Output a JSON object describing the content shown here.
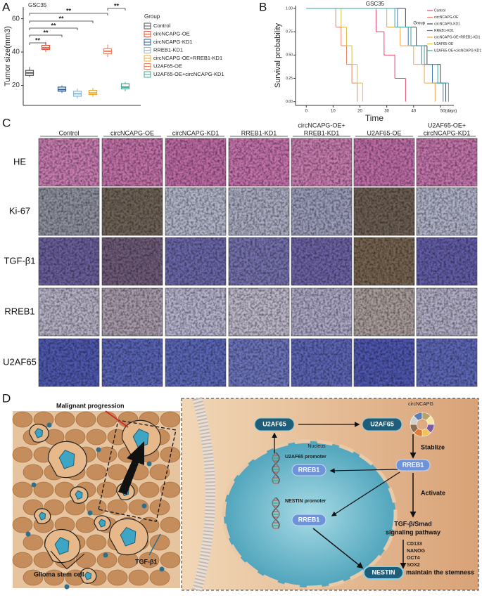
{
  "panel_a": {
    "label": "A",
    "chart": {
      "type": "box",
      "title": "GSC35",
      "y_label": "Tumor size(mm3)",
      "ylim": [
        8,
        67
      ],
      "yticks": [
        20,
        40,
        60
      ],
      "legend_title": "Group",
      "series": [
        {
          "name": "Control",
          "color": "#555555",
          "values": [
            25,
            26,
            27.5,
            29,
            31
          ]
        },
        {
          "name": "circNCAPG-OE",
          "color": "#e8553a",
          "values": [
            40,
            41.5,
            42.5,
            44,
            46
          ]
        },
        {
          "name": "circNCAPG-KD1",
          "color": "#2a5fa8",
          "values": [
            15.5,
            16.5,
            17.5,
            19,
            20
          ]
        },
        {
          "name": "RREB1-KD1",
          "color": "#7fb8e0",
          "values": [
            12,
            13.5,
            15,
            16.5,
            18
          ]
        },
        {
          "name": "circNCAPG-OE+RREB1-KD1",
          "color": "#f0a830",
          "values": [
            13,
            14.5,
            15.5,
            17,
            18.5
          ]
        },
        {
          "name": "U2AF65-OE",
          "color": "#f08060",
          "values": [
            37,
            39,
            40.5,
            42,
            44.5
          ]
        },
        {
          "name": "U2AF65-OE+circNCAPG-KD1",
          "color": "#40a890",
          "values": [
            16.5,
            18,
            19,
            21,
            22
          ]
        }
      ],
      "significance": [
        "**",
        "**",
        "**",
        "**",
        "**",
        "**"
      ]
    }
  },
  "panel_b": {
    "label": "B",
    "chart": {
      "type": "step",
      "title": "GSC35",
      "x_label": "Time",
      "y_label": "Survival probability",
      "xlim": [
        -4,
        55
      ],
      "xticks": [
        0,
        10,
        20,
        30,
        40,
        {
          "value": 50,
          "label": "50(days)"
        }
      ],
      "ylim": [
        -0.04,
        1.03
      ],
      "yticks": [
        {
          "value": 0,
          "label": "0.00"
        },
        0.25,
        {
          "value": 0.5,
          "label": "0.50"
        },
        0.75,
        {
          "value": 1,
          "label": "1.00"
        }
      ],
      "legend_title": "Group",
      "series": [
        {
          "name": "Control",
          "color": "#e8436f",
          "x": [
            0,
            26,
            29,
            33,
            37
          ],
          "values": [
            1,
            0.75,
            0.5,
            0.25,
            0
          ]
        },
        {
          "name": "circNCAPG-OE",
          "color": "#f07f6a",
          "x": [
            0,
            11,
            13,
            15,
            17,
            19
          ],
          "values": [
            1,
            0.8,
            0.6,
            0.4,
            0.2,
            0
          ]
        },
        {
          "name": "circNCAPG-KD1",
          "color": "#444444",
          "x": [
            0,
            37,
            41,
            45,
            50,
            52
          ],
          "values": [
            1,
            0.8,
            0.6,
            0.4,
            0.2,
            0
          ]
        },
        {
          "name": "RREB1-KD1",
          "color": "#3f7ac2",
          "x": [
            0,
            34,
            38,
            43,
            47,
            51
          ],
          "values": [
            1,
            0.8,
            0.6,
            0.4,
            0.2,
            0
          ]
        },
        {
          "name": "circNCAPG-OE+RREB1-KD1",
          "color": "#f2a540",
          "x": [
            0,
            30,
            35,
            40,
            44,
            48
          ],
          "values": [
            1,
            0.8,
            0.6,
            0.4,
            0.2,
            0
          ]
        },
        {
          "name": "U2AF65-OE",
          "color": "#d9c23b",
          "x": [
            0,
            13,
            15,
            17,
            19,
            21
          ],
          "values": [
            1,
            0.8,
            0.6,
            0.4,
            0.2,
            0
          ]
        },
        {
          "name": "U2AF65-OE+circNCAPG-KD1",
          "color": "#3aa6a0",
          "x": [
            0,
            33,
            39,
            44,
            49,
            53
          ],
          "values": [
            1,
            0.8,
            0.6,
            0.4,
            0.2,
            0
          ]
        }
      ]
    }
  },
  "panel_c": {
    "label": "C",
    "columns": [
      [
        "Control"
      ],
      [
        "circNCAPG-OE"
      ],
      [
        "circNCAPG-KD1"
      ],
      [
        "RREB1-KD1"
      ],
      [
        "circNCAPG-OE+",
        "RREB1-KD1"
      ],
      [
        "U2AF65-OE"
      ],
      [
        "U2AF65-OE+",
        "circNCAPG-KD1"
      ]
    ],
    "rows": [
      "HE",
      "Ki-67",
      "TGF-β1",
      "RREB1",
      "U2AF65"
    ]
  },
  "panel_d": {
    "label": "D",
    "malignant": "Malignant progression",
    "glioma": "Glioma stem cell",
    "tgf": "TGF-β1",
    "u2af65_cyto": "U2AF65",
    "u2af65_circ": "U2AF65",
    "circ": "circNCAPG",
    "nucleus": "Nucleus",
    "u2af65_promoter": "U2AF65 promoter",
    "rreb1_a": "RREB1",
    "rreb1_b": "RREB1",
    "rreb1_c": "RREB1",
    "stablize": "Stablize",
    "activate": "Activate",
    "nestin_promoter": "NESTIN promoter",
    "pathway": [
      "TGF-β/Smad",
      "signaling pathway"
    ],
    "markers": [
      "CD133",
      "NANOG",
      "OCT4",
      "SOX2"
    ],
    "nestin": "NESTIN",
    "stemness": "maintain the stemness"
  }
}
